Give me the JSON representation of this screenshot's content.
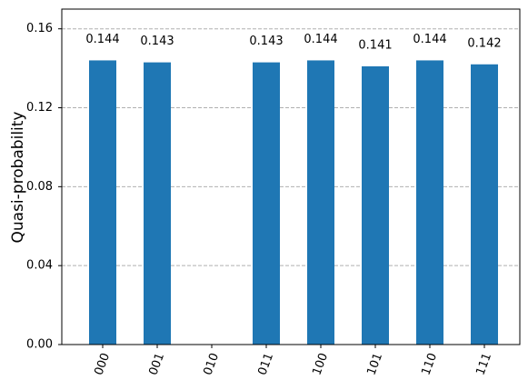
{
  "chart_data": {
    "type": "bar",
    "y_label": "Quasi-probability",
    "categories": [
      "000",
      "001",
      "010",
      "011",
      "100",
      "101",
      "110",
      "111"
    ],
    "values": [
      0.144,
      0.143,
      0,
      0.143,
      0.144,
      0.141,
      0.144,
      0.142
    ],
    "color": "#1f77b4",
    "ylim": [
      0,
      0.17
    ],
    "yticks": [
      {
        "value": 0,
        "label": "0.00"
      },
      0.04,
      0.08,
      0.12,
      0.16
    ],
    "grid": true
  }
}
